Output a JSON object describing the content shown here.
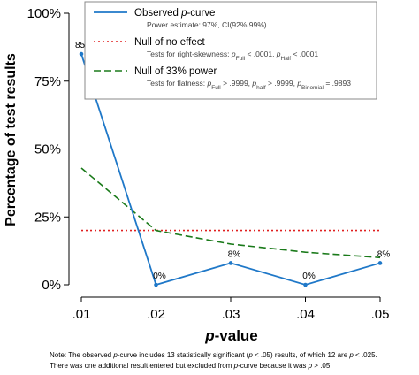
{
  "chart_data": {
    "type": "line",
    "xlabel_main": "p",
    "xlabel_rest": "-value",
    "ylabel": "Percentage of test results",
    "x": [
      0.01,
      0.02,
      0.03,
      0.04,
      0.05
    ],
    "x_tick_labels": [
      ".01",
      ".02",
      ".03",
      ".04",
      ".05"
    ],
    "y_ticks": [
      0,
      25,
      50,
      75,
      100
    ],
    "y_tick_labels": [
      "0%",
      "25%",
      "50%",
      "75%",
      "100%"
    ],
    "ylim": [
      0,
      100
    ],
    "xlim": [
      0.01,
      0.05
    ],
    "series": [
      {
        "name": "Observed p-curve",
        "color": "#1f78c8",
        "style": "solid",
        "values": [
          85,
          0,
          8,
          0,
          8
        ],
        "labels": [
          "85%",
          "0%",
          "8%",
          "0%",
          "8%"
        ]
      },
      {
        "name": "Null of no effect",
        "color": "#e02020",
        "style": "dotted",
        "values": [
          20,
          20,
          20,
          20,
          20
        ]
      },
      {
        "name": "Null of 33% power",
        "color": "#1a7a1a",
        "style": "dashed",
        "values": [
          43,
          20,
          15,
          12,
          10
        ]
      }
    ],
    "legend": {
      "placement": "top-right",
      "entries": [
        {
          "main_pre": "Observed ",
          "main_italic": "p",
          "main_post": "-curve",
          "sub": "Power estimate: 97%, CI(92%,99%)"
        },
        {
          "main": "Null of no effect",
          "sub_parts": [
            {
              "t": "Tests for right-skewness: "
            },
            {
              "t": "p",
              "i": true
            },
            {
              "t": "Full",
              "s": true
            },
            {
              "t": " < .0001,  "
            },
            {
              "t": "p",
              "i": true
            },
            {
              "t": "Half",
              "s": true
            },
            {
              "t": " < .0001"
            }
          ]
        },
        {
          "main": "Null of 33% power",
          "sub_parts": [
            {
              "t": "Tests for flatness: "
            },
            {
              "t": "p",
              "i": true
            },
            {
              "t": "Full",
              "s": true
            },
            {
              "t": " > .9999,  "
            },
            {
              "t": "p",
              "i": true
            },
            {
              "t": "half",
              "s": true
            },
            {
              "t": " > .9999,  "
            },
            {
              "t": "p",
              "i": true
            },
            {
              "t": "Binomial",
              "s": true
            },
            {
              "t": " = .9893"
            }
          ]
        }
      ]
    }
  },
  "note": {
    "line1_parts": [
      {
        "t": "Note: The observed "
      },
      {
        "t": "p",
        "i": true
      },
      {
        "t": "-curve includes 13 statistically significant ("
      },
      {
        "t": "p",
        "i": true
      },
      {
        "t": " < .05) results, of which 12 are "
      },
      {
        "t": "p",
        "i": true
      },
      {
        "t": " < .025."
      }
    ],
    "line2_parts": [
      {
        "t": "There was one additional result entered but excluded from "
      },
      {
        "t": "p",
        "i": true
      },
      {
        "t": "-curve because it was "
      },
      {
        "t": "p",
        "i": true
      },
      {
        "t": " > .05."
      }
    ]
  }
}
